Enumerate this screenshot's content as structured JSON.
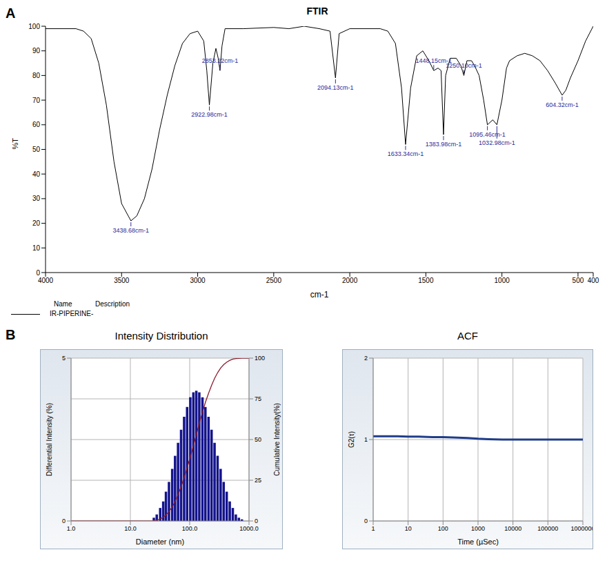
{
  "panel_labels": [
    "A",
    "B"
  ],
  "chart_data": [
    {
      "type": "line",
      "title": "FTIR",
      "x_label": "cm-1",
      "y_label": "%T",
      "x": [
        4000,
        3800,
        3750,
        3700,
        3650,
        3600,
        3550,
        3500,
        3438.68,
        3400,
        3350,
        3300,
        3250,
        3200,
        3150,
        3100,
        3050,
        3000,
        2960,
        2940,
        2922.98,
        2900,
        2880,
        2865,
        2853.22,
        2840,
        2820,
        2700,
        2500,
        2400,
        2300,
        2200,
        2130,
        2094.13,
        2070,
        2000,
        1800,
        1750,
        1700,
        1660,
        1633.34,
        1600,
        1560,
        1520,
        1480,
        1448.15,
        1420,
        1400,
        1383.98,
        1370,
        1340,
        1300,
        1270,
        1250.1,
        1230,
        1200,
        1180,
        1150,
        1120,
        1095.46,
        1060,
        1032.98,
        1000,
        970,
        950,
        900,
        850,
        800,
        750,
        700,
        650,
        604.32,
        580,
        550,
        500,
        450,
        400
      ],
      "xlim": [
        4000,
        400
      ],
      "xticks": [
        4000,
        3500,
        3000,
        2500,
        2000,
        1500,
        1000,
        500,
        400
      ],
      "ylim": [
        0,
        100
      ],
      "yticks": [
        0,
        10,
        20,
        30,
        40,
        50,
        60,
        70,
        80,
        90,
        100
      ],
      "grid": false,
      "series": [
        {
          "name": "IR-PIPERINE-",
          "color": "#000000",
          "values": [
            99,
            99,
            98,
            95,
            85,
            68,
            45,
            28,
            21,
            23,
            30,
            42,
            58,
            72,
            84,
            93,
            97,
            98,
            94,
            82,
            68,
            85,
            91,
            87,
            82,
            92,
            99,
            99,
            99.5,
            99,
            100,
            99,
            98,
            79,
            97,
            99,
            99,
            98,
            93,
            75,
            52,
            75,
            88,
            90,
            86,
            82,
            83,
            82,
            56,
            80,
            87,
            87,
            84,
            80,
            86,
            86,
            84,
            80,
            70,
            60,
            62,
            60,
            70,
            83,
            86,
            88,
            89,
            88,
            86,
            82,
            77,
            72,
            74,
            79,
            86,
            94,
            100
          ]
        }
      ],
      "annotations": [
        {
          "x": 3438.68,
          "y": 21,
          "text": "3438.68cm-1"
        },
        {
          "x": 2922.98,
          "y": 68,
          "text": "2922.98cm-1"
        },
        {
          "x": 2853.22,
          "y": 82,
          "text": "2853.22cm-1"
        },
        {
          "x": 2094.13,
          "y": 79,
          "text": "2094.13cm-1"
        },
        {
          "x": 1633.34,
          "y": 52,
          "text": "1633.34cm-1"
        },
        {
          "x": 1448.15,
          "y": 82,
          "text": "1448.15cm-1"
        },
        {
          "x": 1383.98,
          "y": 56,
          "text": "1383.98cm-1"
        },
        {
          "x": 1250.1,
          "y": 80,
          "text": "1250.10cm-1"
        },
        {
          "x": 1095.46,
          "y": 60,
          "text": "1095.46cm-1"
        },
        {
          "x": 1032.98,
          "y": 60,
          "text": "1032.98cm-1"
        },
        {
          "x": 604.32,
          "y": 72,
          "text": "604.32cm-1"
        }
      ],
      "legend_header": [
        "Name",
        "Description"
      ]
    },
    {
      "type": "bar",
      "title": "Intensity Distribution",
      "x_label": "Diameter (nm)",
      "y_label": "Differential Intensity (%)",
      "y2_label": "Cumulative Intensity(%)",
      "log": "x",
      "x": [
        1,
        25,
        28,
        32,
        36,
        40,
        45,
        51,
        57,
        64,
        72,
        81,
        91,
        103,
        116,
        130,
        146,
        165,
        185,
        209,
        235,
        264,
        297,
        334,
        376,
        423,
        476,
        536,
        603,
        678,
        763,
        1000
      ],
      "xlim": [
        1,
        1000
      ],
      "xticks": [
        {
          "value": 1,
          "label": "1.0"
        },
        {
          "value": 10,
          "label": "10.0"
        },
        {
          "value": 100,
          "label": "100.0"
        },
        {
          "value": 1000,
          "label": "1000.0"
        }
      ],
      "ylim": [
        0,
        5
      ],
      "yticks": [
        0,
        5
      ],
      "y2lim": [
        0,
        100
      ],
      "y2ticks": [
        0,
        25,
        50,
        75,
        100
      ],
      "grid": true,
      "series": [
        {
          "type": "bar",
          "color": "#14148c",
          "values": [
            null,
            0.1,
            0.2,
            0.4,
            0.6,
            0.9,
            1.2,
            1.6,
            2.0,
            2.4,
            2.8,
            3.2,
            3.5,
            3.8,
            3.95,
            4.0,
            3.95,
            3.8,
            3.5,
            3.2,
            2.8,
            2.4,
            2.0,
            1.6,
            1.2,
            0.9,
            0.6,
            0.4,
            0.2,
            0.1,
            0.05,
            null
          ]
        },
        {
          "type": "line",
          "axis": "y2",
          "color": "#8b1c2c",
          "values": [
            0,
            0.2,
            0.5,
            1.2,
            2.3,
            3.8,
            5.9,
            8.7,
            12.2,
            16.4,
            21.3,
            26.9,
            33.0,
            39.6,
            46.5,
            53.4,
            60.3,
            67.0,
            73.1,
            78.6,
            83.5,
            87.7,
            91.2,
            94.0,
            96.1,
            97.6,
            98.7,
            99.4,
            99.7,
            99.9,
            100,
            100
          ]
        }
      ]
    },
    {
      "type": "line",
      "title": "ACF",
      "x_label": "Time (µSec)",
      "y_label": "G2(τ)",
      "log": "x",
      "x": [
        1,
        2,
        5,
        10,
        20,
        50,
        100,
        200,
        500,
        1000,
        2000,
        5000,
        10000,
        100000,
        1000000
      ],
      "xlim": [
        1,
        1000000
      ],
      "xticks": [
        1,
        10,
        100,
        1000,
        10000,
        100000,
        1000000
      ],
      "ylim": [
        0,
        2
      ],
      "yticks": [
        0,
        1,
        2
      ],
      "grid": true,
      "series": [
        {
          "color": "#1f3d8a",
          "values": [
            1.04,
            1.04,
            1.04,
            1.035,
            1.035,
            1.03,
            1.03,
            1.025,
            1.02,
            1.01,
            1.005,
            1.0,
            1.0,
            1.0,
            1.0
          ]
        }
      ]
    }
  ]
}
